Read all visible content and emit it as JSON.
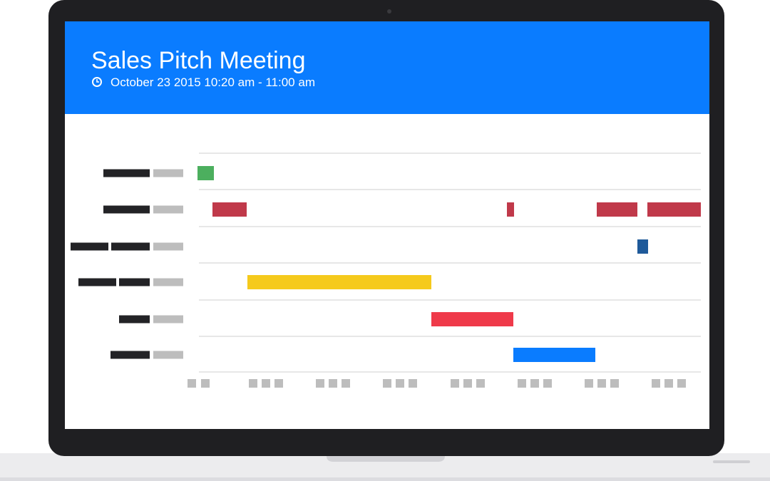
{
  "header": {
    "title": "Sales Pitch Meeting",
    "subtitle": "October 23 2015 10:20 am - 11:00 am"
  }
}
